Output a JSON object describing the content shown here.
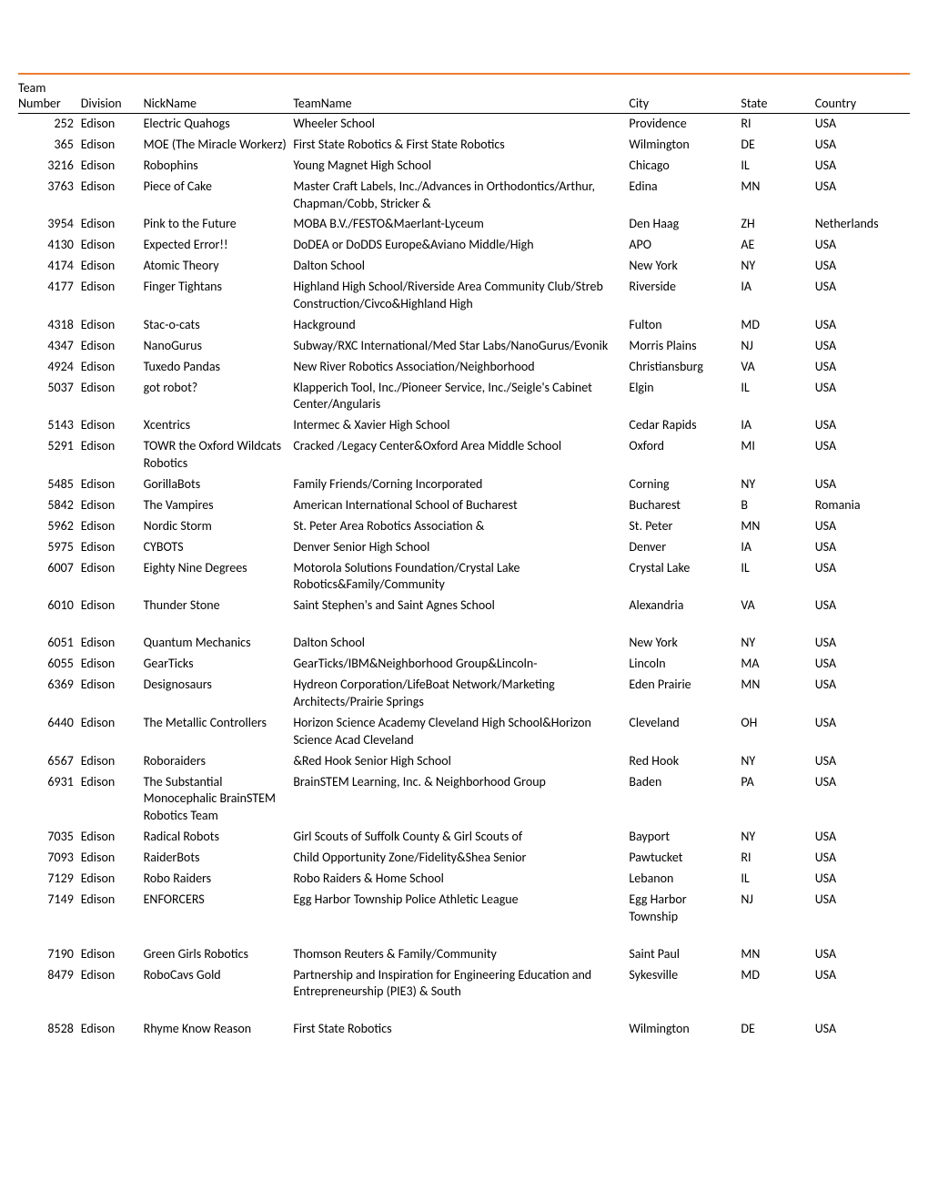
{
  "table": {
    "columns": [
      "Team Number",
      "Division",
      "NickName",
      "TeamName",
      "City",
      "State",
      "Country"
    ],
    "header_line1": "Team",
    "header_line2": [
      "Number",
      "Division",
      "NickName",
      "TeamName",
      "City",
      "State",
      "Country"
    ],
    "rows": [
      {
        "num": "252",
        "div": "Edison",
        "nick": "Electric Quahogs",
        "team": "Wheeler School",
        "city": "Providence",
        "state": "RI",
        "country": "USA"
      },
      {
        "num": "365",
        "div": "Edison",
        "nick": "MOE (The Miracle Workerz)",
        "team": "First State Robotics & First State Robotics",
        "city": "Wilmington",
        "state": "DE",
        "country": "USA"
      },
      {
        "num": "3216",
        "div": "Edison",
        "nick": "Robophins",
        "team": "Young Magnet High School",
        "city": "Chicago",
        "state": "IL",
        "country": "USA"
      },
      {
        "num": "3763",
        "div": "Edison",
        "nick": "Piece of Cake",
        "team": "Master Craft Labels, Inc./Advances in Orthodontics/Arthur, Chapman/Cobb, Stricker &",
        "city": "Edina",
        "state": "MN",
        "country": "USA"
      },
      {
        "num": "3954",
        "div": "Edison",
        "nick": "Pink to the Future",
        "team": "MOBA B.V./FESTO&Maerlant-Lyceum",
        "city": "Den Haag",
        "state": "ZH",
        "country": "Netherlands"
      },
      {
        "num": "4130",
        "div": "Edison",
        "nick": "Expected Error!!",
        "team": "DoDEA or DoDDS Europe&Aviano Middle/High",
        "city": "APO",
        "state": "AE",
        "country": "USA"
      },
      {
        "num": "4174",
        "div": "Edison",
        "nick": "Atomic Theory",
        "team": "Dalton School",
        "city": "New York",
        "state": "NY",
        "country": "USA"
      },
      {
        "num": "4177",
        "div": "Edison",
        "nick": "Finger Tightans",
        "team": "Highland High School/Riverside Area Community Club/Streb Construction/Civco&Highland High",
        "city": "Riverside",
        "state": "IA",
        "country": "USA"
      },
      {
        "num": "4318",
        "div": "Edison",
        "nick": "Stac-o-cats",
        "team": "Hackground",
        "city": "Fulton",
        "state": "MD",
        "country": "USA"
      },
      {
        "num": "4347",
        "div": "Edison",
        "nick": "NanoGurus",
        "team": "Subway/RXC International/Med Star Labs/NanoGurus/Evonik",
        "city": "Morris Plains",
        "state": "NJ",
        "country": "USA"
      },
      {
        "num": "4924",
        "div": "Edison",
        "nick": "Tuxedo Pandas",
        "team": "New River Robotics Association/Neighborhood",
        "city": "Christiansburg",
        "state": "VA",
        "country": "USA"
      },
      {
        "num": "5037",
        "div": "Edison",
        "nick": "got robot?",
        "team": "Klapperich Tool, Inc./Pioneer Service, Inc./Seigle's Cabinet Center/Angularis",
        "city": "Elgin",
        "state": "IL",
        "country": "USA"
      },
      {
        "num": "5143",
        "div": "Edison",
        "nick": "Xcentrics",
        "team": "Intermec & Xavier High School",
        "city": "Cedar Rapids",
        "state": "IA",
        "country": "USA"
      },
      {
        "num": "5291",
        "div": "Edison",
        "nick": "TOWR the Oxford Wildcats Robotics",
        "team": "Cracked /Legacy Center&Oxford Area Middle School",
        "city": "Oxford",
        "state": "MI",
        "country": "USA"
      },
      {
        "num": "5485",
        "div": "Edison",
        "nick": "GorillaBots",
        "team": "Family Friends/Corning Incorporated",
        "city": "Corning",
        "state": "NY",
        "country": "USA"
      },
      {
        "num": "5842",
        "div": "Edison",
        "nick": "The Vampires",
        "team": "American International School of Bucharest",
        "city": "Bucharest",
        "state": "B",
        "country": "Romania"
      },
      {
        "num": "5962",
        "div": "Edison",
        "nick": "Nordic Storm",
        "team": "St. Peter Area Robotics Association &",
        "city": "St. Peter",
        "state": "MN",
        "country": "USA"
      },
      {
        "num": "5975",
        "div": "Edison",
        "nick": "CYBOTS",
        "team": "Denver Senior High School",
        "city": "Denver",
        "state": "IA",
        "country": "USA"
      },
      {
        "num": "6007",
        "div": "Edison",
        "nick": "Eighty Nine Degrees",
        "team": "Motorola Solutions Foundation/Crystal Lake Robotics&Family/Community",
        "city": "Crystal Lake",
        "state": "IL",
        "country": "USA"
      },
      {
        "num": "6010",
        "div": "Edison",
        "nick": "Thunder Stone",
        "team": "Saint Stephen's and Saint Agnes School",
        "city": "Alexandria",
        "state": "VA",
        "country": "USA",
        "gap_after": true
      },
      {
        "num": "6051",
        "div": "Edison",
        "nick": "Quantum Mechanics",
        "team": "Dalton School",
        "city": "New York",
        "state": "NY",
        "country": "USA"
      },
      {
        "num": "6055",
        "div": "Edison",
        "nick": "GearTicks",
        "team": "GearTicks/IBM&Neighborhood Group&Lincoln-",
        "city": "Lincoln",
        "state": "MA",
        "country": "USA"
      },
      {
        "num": "6369",
        "div": "Edison",
        "nick": "Designosaurs",
        "team": "Hydreon Corporation/LifeBoat Network/Marketing Architects/Prairie Springs",
        "city": "Eden Prairie",
        "state": "MN",
        "country": "USA"
      },
      {
        "num": "6440",
        "div": "Edison",
        "nick": "The Metallic Controllers",
        "team": "Horizon Science Academy Cleveland High School&Horizon Science Acad Cleveland",
        "city": "Cleveland",
        "state": "OH",
        "country": "USA"
      },
      {
        "num": "6567",
        "div": "Edison",
        "nick": "Roboraiders",
        "team": "&Red Hook Senior High School",
        "city": "Red Hook",
        "state": "NY",
        "country": "USA"
      },
      {
        "num": "6931",
        "div": "Edison",
        "nick": "The Substantial Monocephalic BrainSTEM Robotics Team",
        "team": "BrainSTEM Learning, Inc. & Neighborhood Group",
        "city": "Baden",
        "state": "PA",
        "country": "USA"
      },
      {
        "num": "7035",
        "div": "Edison",
        "nick": "Radical Robots",
        "team": "Girl Scouts of Suffolk County  & Girl Scouts of",
        "city": "Bayport",
        "state": "NY",
        "country": "USA"
      },
      {
        "num": "7093",
        "div": "Edison",
        "nick": "RaiderBots",
        "team": "Child Opportunity Zone/Fidelity&Shea Senior",
        "city": "Pawtucket",
        "state": "RI",
        "country": "USA"
      },
      {
        "num": "7129",
        "div": "Edison",
        "nick": "Robo Raiders",
        "team": "Robo Raiders & Home School",
        "city": "Lebanon",
        "state": "IL",
        "country": "USA"
      },
      {
        "num": "7149",
        "div": "Edison",
        "nick": "ENFORCERS",
        "team": "Egg Harbor Township Police Athletic League",
        "city": "Egg Harbor Township",
        "state": "NJ",
        "country": "USA",
        "gap_after": true
      },
      {
        "num": "7190",
        "div": "Edison",
        "nick": "Green Girls Robotics",
        "team": "Thomson Reuters & Family/Community",
        "city": "Saint Paul",
        "state": "MN",
        "country": "USA"
      },
      {
        "num": "8479",
        "div": "Edison",
        "nick": "RoboCavs Gold",
        "team": "Partnership and Inspiration for Engineering Education and Entrepreneurship (PIE3) & South",
        "city": "Sykesville",
        "state": "MD",
        "country": "USA",
        "gap_after": true
      },
      {
        "num": "8528",
        "div": "Edison",
        "nick": "Rhyme Know Reason",
        "team": "First State Robotics",
        "city": "Wilmington",
        "state": "DE",
        "country": "USA"
      }
    ]
  },
  "styling": {
    "accent_color": "#ed7d31",
    "text_color": "#000000",
    "background_color": "#ffffff",
    "font_family": "Calibri, Arial, sans-serif",
    "font_size_pt": 11
  }
}
